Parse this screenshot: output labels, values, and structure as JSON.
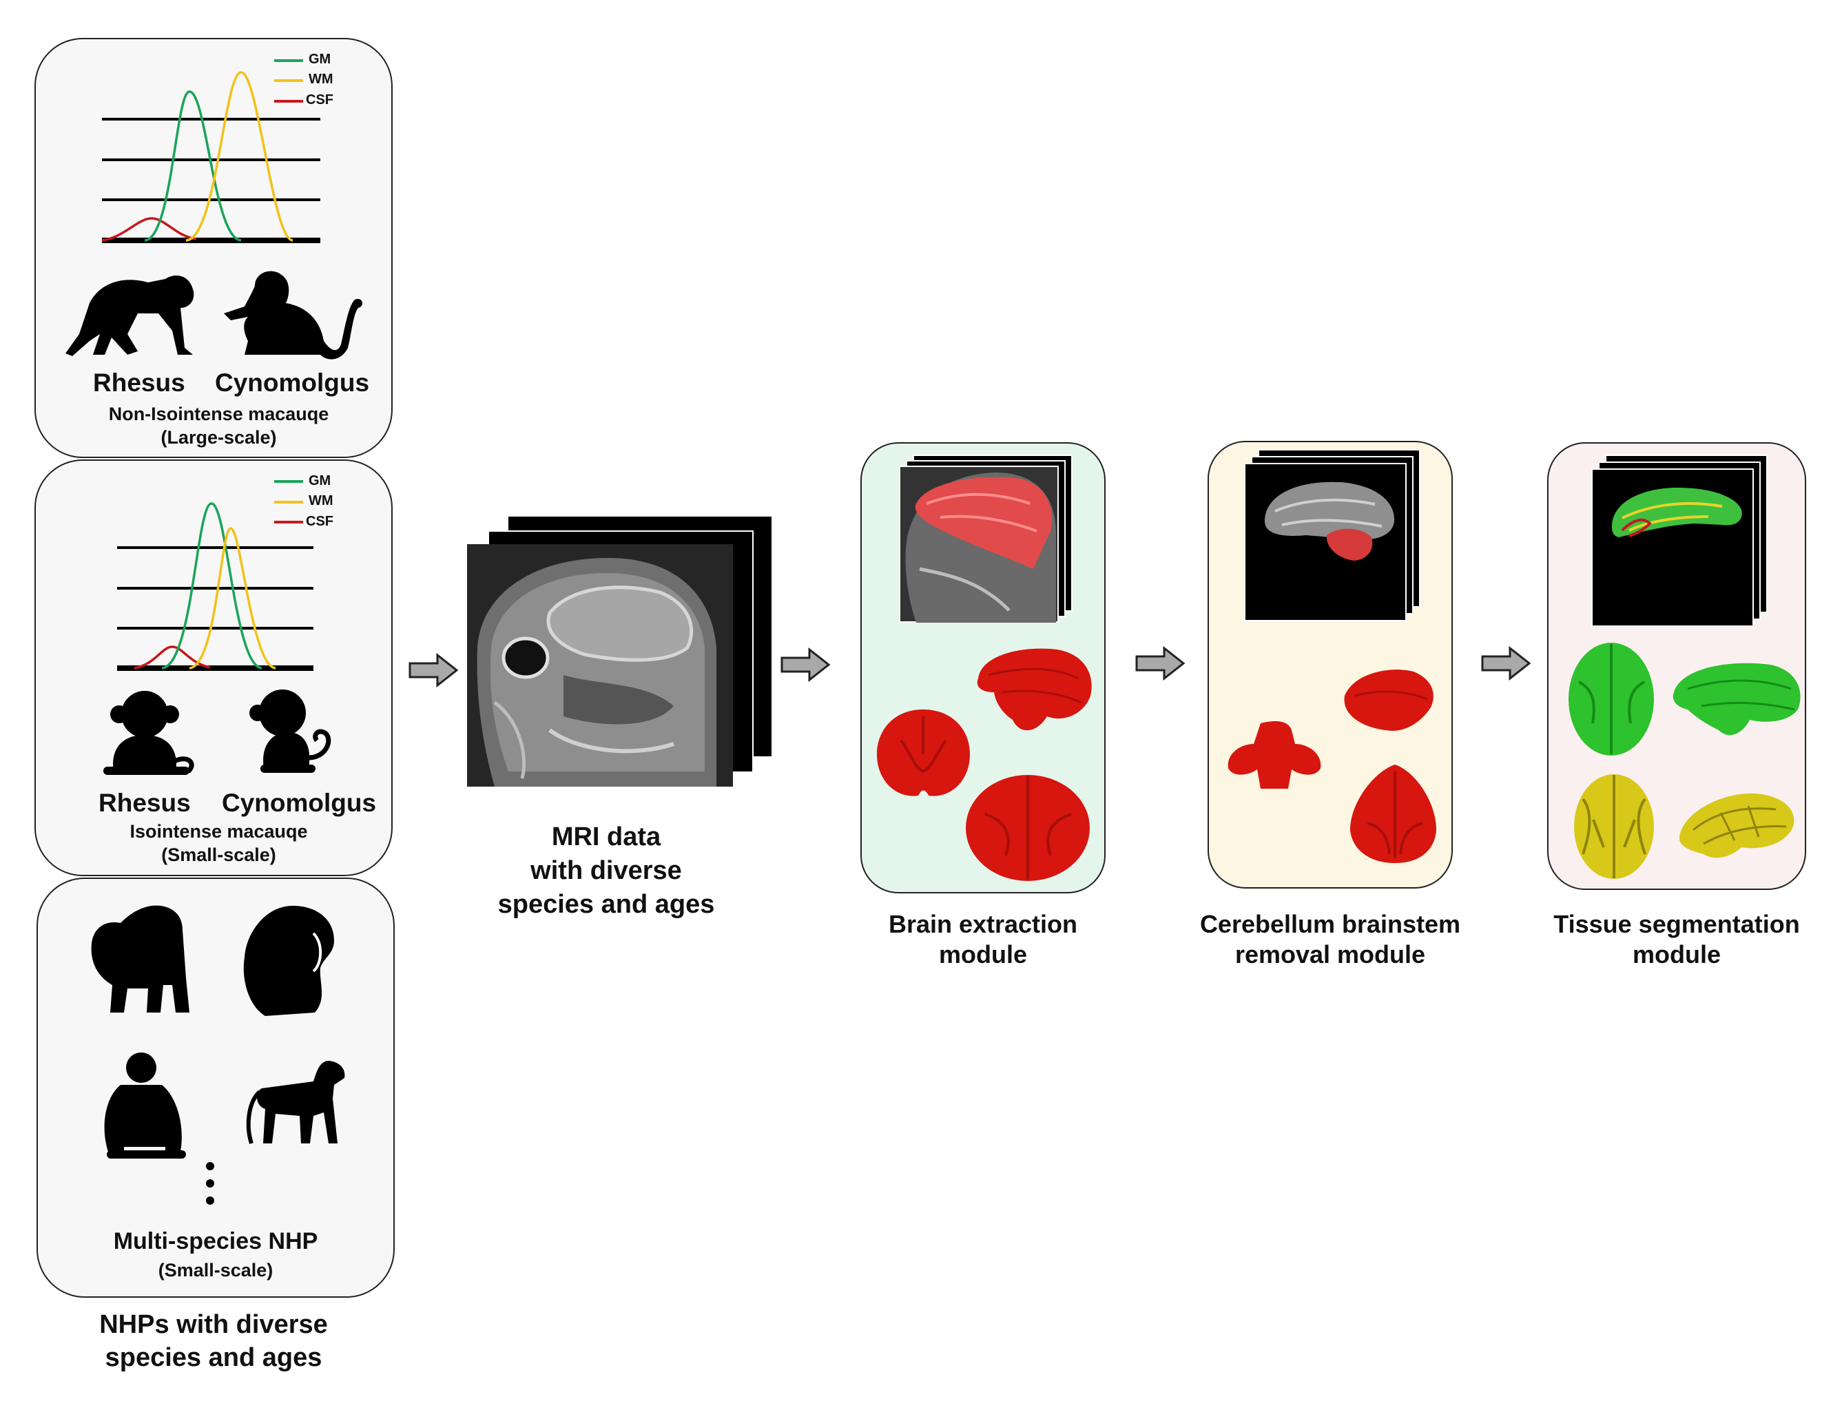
{
  "legend": {
    "gm": "GM",
    "wm": "WM",
    "csf": "CSF"
  },
  "colors": {
    "gm": "#1aa55a",
    "wm": "#f2c21b",
    "csf": "#c8161d",
    "brain_red": "#d6160f",
    "brain_green": "#2ec22e",
    "brain_yellow": "#d8c81a"
  },
  "panels": {
    "non_isointense": {
      "species_1": "Rhesus",
      "species_2": "Cynomolgus",
      "caption_1": "Non-Isointense macauqe",
      "caption_2": "(Large-scale)"
    },
    "isointense": {
      "species_1": "Rhesus",
      "species_2": "Cynomolgus",
      "caption_1": "Isointense macauqe",
      "caption_2": "(Small-scale)"
    },
    "multi_species": {
      "caption_1": "Multi-species NHP",
      "caption_2": "(Small-scale)"
    }
  },
  "bottom_caption": {
    "line1": "NHPs with diverse",
    "line2": "species and ages"
  },
  "mri_caption": {
    "line1": "MRI data",
    "line2": "with diverse",
    "line3": "species and ages"
  },
  "modules": {
    "brain_extraction": {
      "line1": "Brain extraction",
      "line2": "module"
    },
    "cerebellum_removal": {
      "line1": "Cerebellum brainstem",
      "line2": "removal module"
    },
    "tissue_segmentation": {
      "line1": "Tissue segmentation",
      "line2": "module"
    }
  }
}
